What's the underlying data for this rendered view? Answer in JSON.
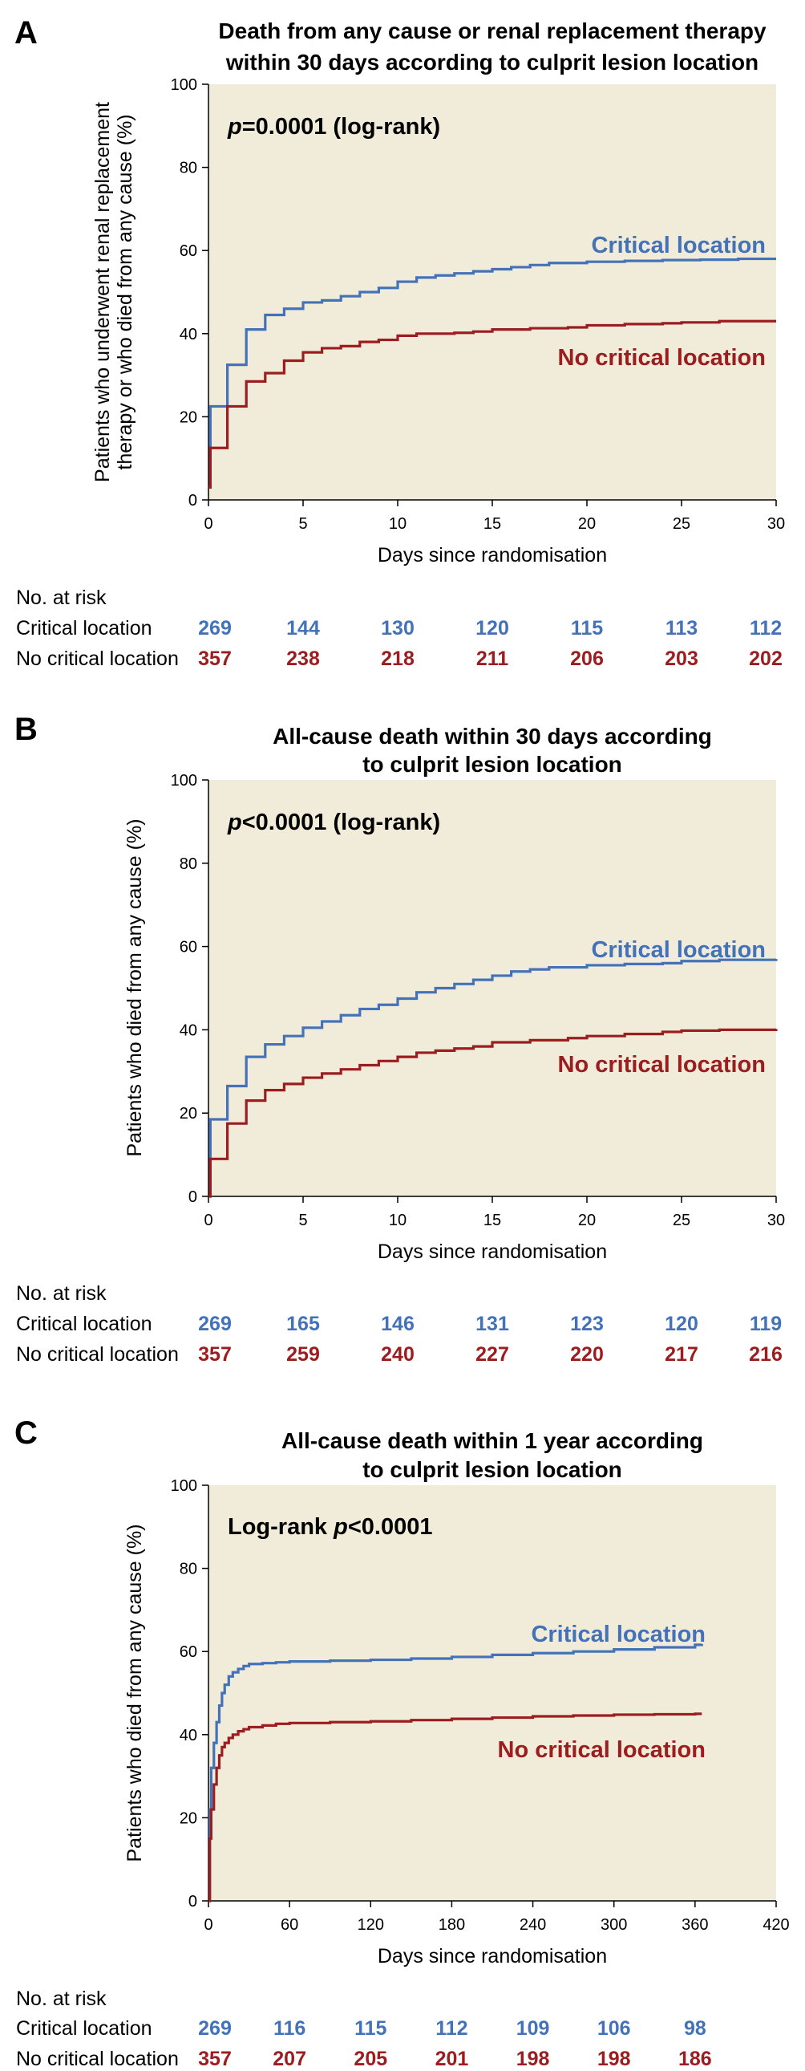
{
  "colors": {
    "critical": "#4472b8",
    "no_critical": "#9b1d20",
    "plot_bg": "#f1ecd9",
    "axis": "#000000"
  },
  "risk_header": "No. at risk",
  "chart_data": [
    {
      "panel": "A",
      "type": "line",
      "title": [
        "Death from any cause or renal replacement therapy",
        "within 30 days according to culprit lesion location"
      ],
      "xlabel": "Days since randomisation",
      "ylabel": [
        "Patients who underwent renal replacement",
        "therapy or who died from any cause (%)"
      ],
      "xlim": [
        0,
        30
      ],
      "ylim": [
        0,
        100
      ],
      "xticks": [
        0,
        5,
        10,
        15,
        20,
        25,
        30
      ],
      "yticks": [
        0,
        20,
        40,
        60,
        80,
        100
      ],
      "annotation": {
        "prefix": "",
        "italic": "p",
        "suffix": "=0.0001 (log-rank)"
      },
      "series": [
        {
          "name": "Critical location",
          "key": "critical",
          "x": [
            0,
            0.1,
            1,
            2,
            3,
            4,
            5,
            6,
            7,
            8,
            9,
            10,
            11,
            12,
            13,
            14,
            15,
            16,
            17,
            18,
            20,
            22,
            24,
            26,
            28,
            30
          ],
          "y": [
            3,
            22.5,
            32.5,
            41,
            44.5,
            46,
            47.5,
            48,
            49,
            50,
            51,
            52.5,
            53.5,
            54,
            54.5,
            55,
            55.5,
            56,
            56.5,
            57,
            57.3,
            57.5,
            57.7,
            57.8,
            58,
            58
          ]
        },
        {
          "name": "No critical location",
          "key": "no_critical",
          "x": [
            0,
            0.1,
            1,
            2,
            3,
            4,
            5,
            6,
            7,
            8,
            9,
            10,
            11,
            12,
            13,
            14,
            15,
            17,
            19,
            20,
            22,
            24,
            25,
            27,
            30
          ],
          "y": [
            3,
            12.5,
            22.5,
            28.5,
            30.5,
            33.5,
            35.5,
            36.5,
            37,
            38,
            38.5,
            39.5,
            40,
            40,
            40.2,
            40.5,
            41,
            41.3,
            41.5,
            42,
            42.3,
            42.5,
            42.7,
            43,
            43
          ]
        }
      ],
      "risk_table": {
        "x": [
          0,
          5,
          10,
          15,
          20,
          25,
          30
        ],
        "rows": [
          {
            "label": "Critical location",
            "key": "critical",
            "values": [
              269,
              144,
              130,
              120,
              115,
              113,
              112
            ]
          },
          {
            "label": "No critical location",
            "key": "no_critical",
            "values": [
              357,
              238,
              218,
              211,
              206,
              203,
              202
            ]
          }
        ]
      }
    },
    {
      "panel": "B",
      "type": "line",
      "title": [
        "All-cause death within 30 days according",
        "to culprit lesion location"
      ],
      "xlabel": "Days since randomisation",
      "ylabel": [
        "Patients who died from any cause (%)"
      ],
      "xlim": [
        0,
        30
      ],
      "ylim": [
        0,
        100
      ],
      "xticks": [
        0,
        5,
        10,
        15,
        20,
        25,
        30
      ],
      "yticks": [
        0,
        20,
        40,
        60,
        80,
        100
      ],
      "annotation": {
        "prefix": "",
        "italic": "p",
        "suffix": "<0.0001 (log-rank)"
      },
      "series": [
        {
          "name": "Critical location",
          "key": "critical",
          "x": [
            0,
            0.1,
            1,
            2,
            3,
            4,
            5,
            6,
            7,
            8,
            9,
            10,
            11,
            12,
            13,
            14,
            15,
            16,
            17,
            18,
            20,
            22,
            24,
            25,
            27,
            30
          ],
          "y": [
            0,
            18.5,
            26.5,
            33.5,
            36.5,
            38.5,
            40.5,
            42,
            43.5,
            45,
            46,
            47.5,
            49,
            50,
            51,
            52,
            53,
            54,
            54.5,
            55,
            55.5,
            55.8,
            56,
            56.5,
            56.8,
            57
          ]
        },
        {
          "name": "No critical location",
          "key": "no_critical",
          "x": [
            0,
            0.1,
            1,
            2,
            3,
            4,
            5,
            6,
            7,
            8,
            9,
            10,
            11,
            12,
            13,
            14,
            15,
            17,
            19,
            20,
            22,
            24,
            25,
            27,
            30
          ],
          "y": [
            0,
            9,
            17.5,
            23,
            25.5,
            27,
            28.5,
            29.5,
            30.5,
            31.5,
            32.5,
            33.5,
            34.5,
            35,
            35.5,
            36,
            37,
            37.5,
            38,
            38.5,
            39,
            39.5,
            39.8,
            40,
            40.2
          ]
        }
      ],
      "risk_table": {
        "x": [
          0,
          5,
          10,
          15,
          20,
          25,
          30
        ],
        "rows": [
          {
            "label": "Critical location",
            "key": "critical",
            "values": [
              269,
              165,
              146,
              131,
              123,
              120,
              119
            ]
          },
          {
            "label": "No critical location",
            "key": "no_critical",
            "values": [
              357,
              259,
              240,
              227,
              220,
              217,
              216
            ]
          }
        ]
      }
    },
    {
      "panel": "C",
      "type": "line",
      "title": [
        "All-cause death within 1 year according",
        "to culprit lesion location"
      ],
      "xlabel": "Days since randomisation",
      "ylabel": [
        "Patients who died from any cause (%)"
      ],
      "xlim": [
        0,
        420
      ],
      "ylim": [
        0,
        100
      ],
      "xticks": [
        0,
        60,
        120,
        180,
        240,
        300,
        360,
        420
      ],
      "yticks": [
        0,
        20,
        40,
        60,
        80,
        100
      ],
      "annotation": {
        "prefix": "Log-rank ",
        "italic": "p",
        "suffix": "<0.0001"
      },
      "series": [
        {
          "name": "Critical location",
          "key": "critical",
          "x": [
            0,
            1,
            2,
            4,
            6,
            8,
            10,
            12,
            15,
            18,
            22,
            26,
            30,
            40,
            50,
            60,
            90,
            120,
            150,
            180,
            210,
            240,
            270,
            300,
            330,
            360,
            365
          ],
          "y": [
            0,
            22,
            32,
            38,
            43,
            47,
            50,
            52,
            54,
            55,
            55.8,
            56.5,
            57,
            57.2,
            57.4,
            57.6,
            57.8,
            58,
            58.3,
            58.7,
            59.2,
            59.6,
            60,
            60.5,
            61,
            61.6,
            61.8
          ]
        },
        {
          "name": "No critical location",
          "key": "no_critical",
          "x": [
            0,
            1,
            2,
            4,
            6,
            8,
            10,
            12,
            15,
            18,
            22,
            26,
            30,
            40,
            50,
            60,
            90,
            120,
            150,
            180,
            210,
            240,
            270,
            300,
            330,
            360,
            365
          ],
          "y": [
            0,
            15,
            22,
            28,
            32,
            35,
            37,
            38,
            39.2,
            40,
            40.8,
            41.3,
            41.8,
            42.2,
            42.6,
            42.8,
            43,
            43.2,
            43.5,
            43.8,
            44.1,
            44.4,
            44.6,
            44.8,
            44.9,
            45,
            45
          ]
        }
      ],
      "risk_table": {
        "x": [
          0,
          60,
          120,
          180,
          240,
          300,
          360
        ],
        "rows": [
          {
            "label": "Critical location",
            "key": "critical",
            "values": [
              269,
              116,
              115,
              112,
              109,
              106,
              98
            ]
          },
          {
            "label": "No critical location",
            "key": "no_critical",
            "values": [
              357,
              207,
              205,
              201,
              198,
              198,
              186
            ]
          }
        ]
      }
    }
  ]
}
